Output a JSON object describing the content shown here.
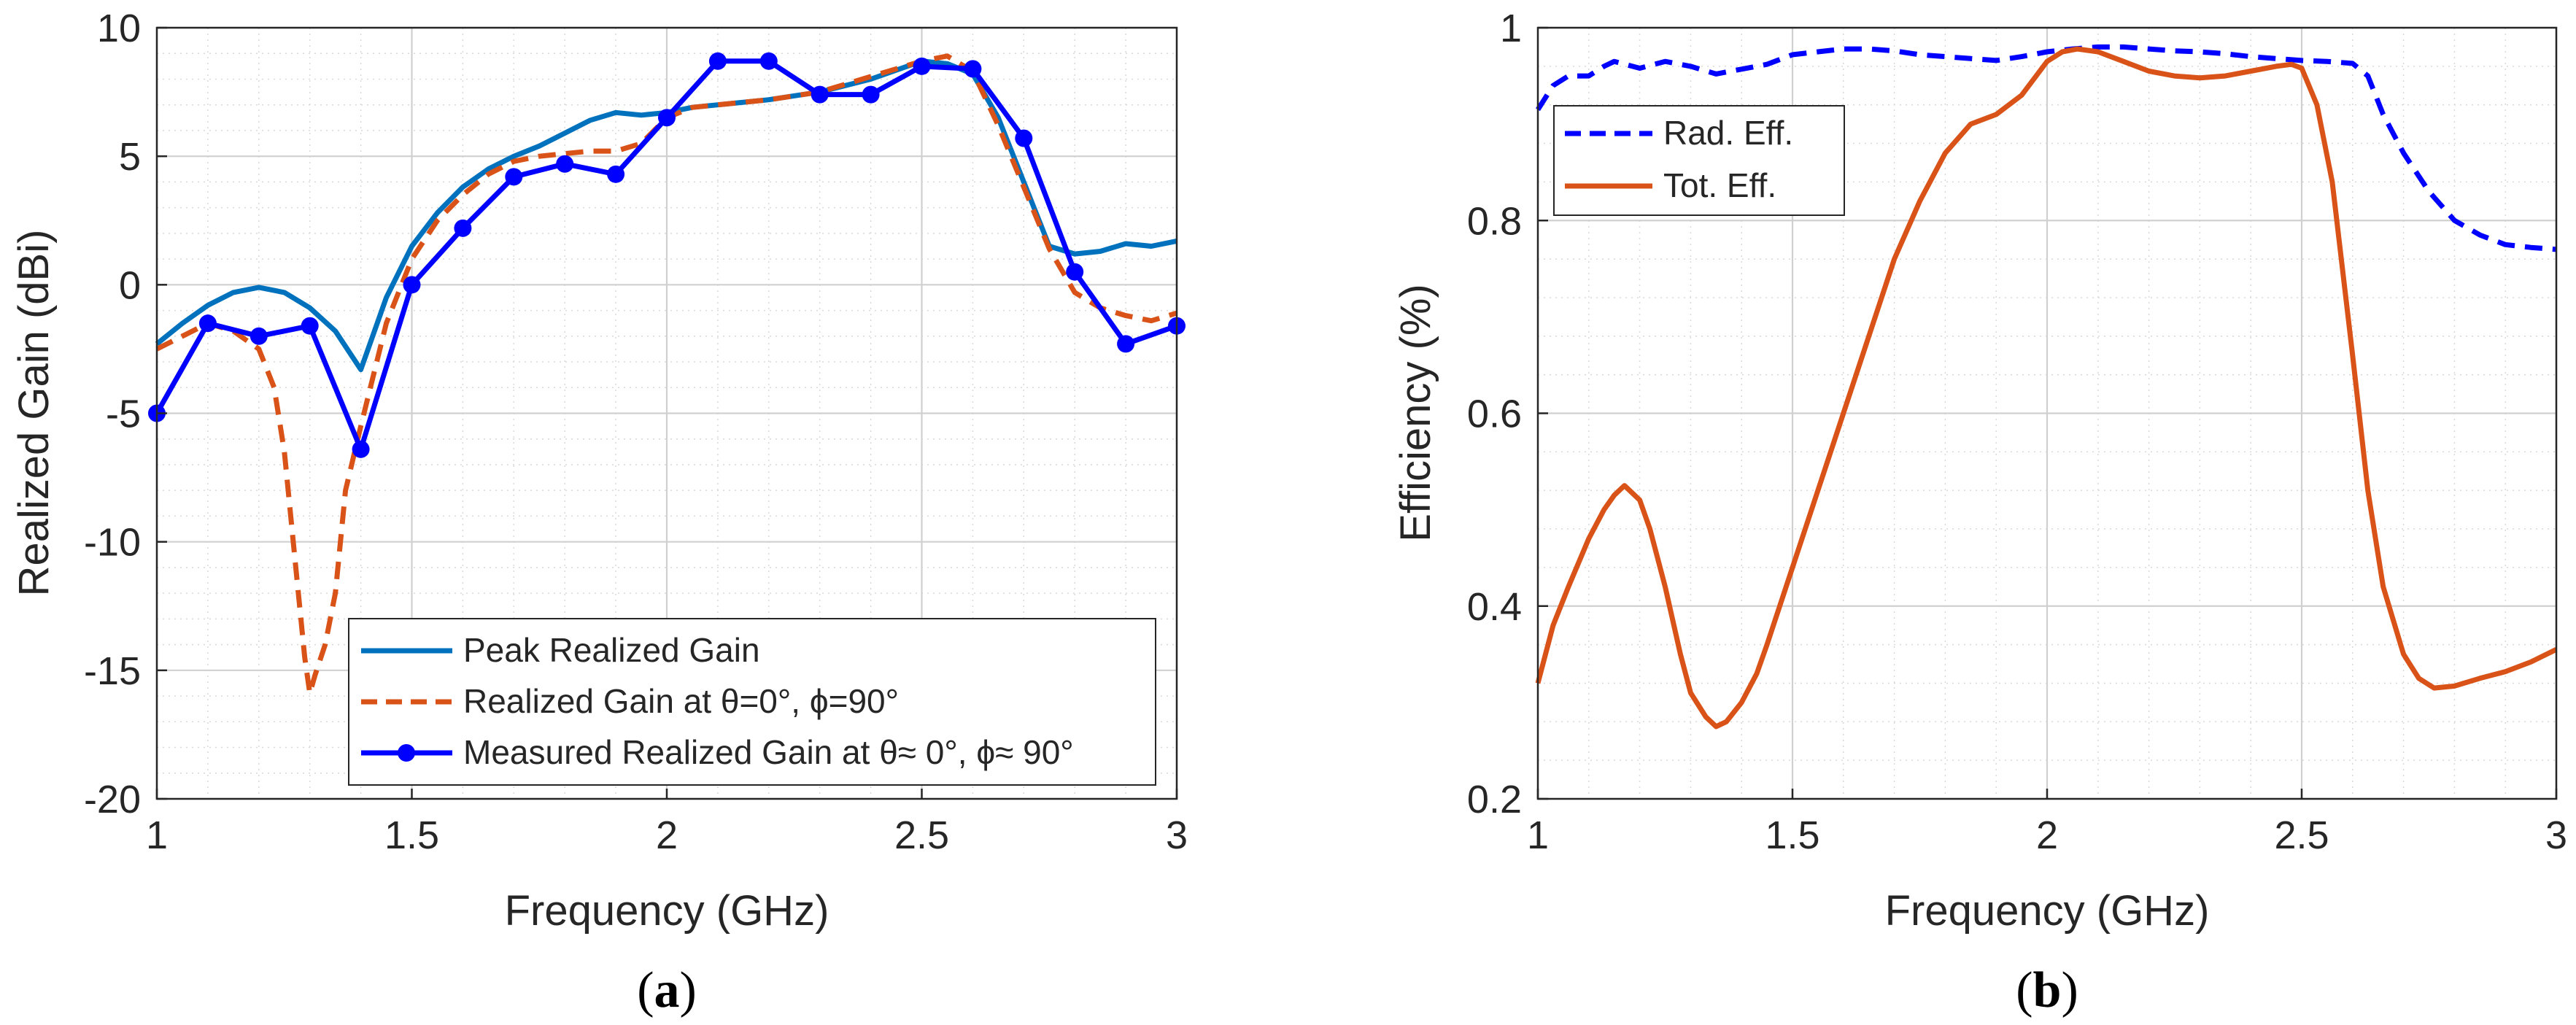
{
  "panels": [
    {
      "label_open": "(",
      "label_letter": "a",
      "label_close": ")",
      "chart_data": {
        "type": "line",
        "title": "",
        "xlabel": "Frequency (GHz)",
        "ylabel": "Realized Gain (dBi)",
        "xlim": [
          1,
          3
        ],
        "ylim": [
          -20,
          10
        ],
        "xticks": [
          1,
          1.5,
          2,
          2.5,
          3
        ],
        "xticklabels": [
          "1",
          "1.5",
          "2",
          "2.5",
          "3"
        ],
        "yticks": [
          -20,
          -15,
          -10,
          -5,
          0,
          5,
          10
        ],
        "yticklabels": [
          "-20",
          "-15",
          "-10",
          "-5",
          "0",
          "5",
          "10"
        ],
        "grid": true,
        "minor_grid": true,
        "legend_position": "bottom-right",
        "series": [
          {
            "name": "Peak Realized Gain",
            "color": "#0072BD",
            "style": "solid",
            "marker": "none",
            "x": [
              1.0,
              1.05,
              1.1,
              1.15,
              1.2,
              1.25,
              1.3,
              1.35,
              1.4,
              1.45,
              1.5,
              1.55,
              1.6,
              1.65,
              1.7,
              1.75,
              1.8,
              1.85,
              1.9,
              1.95,
              2.0,
              2.05,
              2.1,
              2.2,
              2.3,
              2.4,
              2.5,
              2.55,
              2.6,
              2.65,
              2.7,
              2.75,
              2.8,
              2.85,
              2.9,
              2.95,
              3.0
            ],
            "y": [
              -2.3,
              -1.5,
              -0.8,
              -0.3,
              -0.1,
              -0.3,
              -0.9,
              -1.8,
              -3.3,
              -0.5,
              1.5,
              2.8,
              3.8,
              4.5,
              5.0,
              5.4,
              5.9,
              6.4,
              6.7,
              6.6,
              6.7,
              6.9,
              7.0,
              7.2,
              7.5,
              8.0,
              8.7,
              8.6,
              8.2,
              6.5,
              4.0,
              1.5,
              1.2,
              1.3,
              1.6,
              1.5,
              1.7
            ]
          },
          {
            "name": "Realized Gain at θ=0°, ϕ=90°",
            "color": "#D95319",
            "style": "dashed",
            "marker": "none",
            "x": [
              1.0,
              1.05,
              1.1,
              1.15,
              1.2,
              1.23,
              1.25,
              1.27,
              1.29,
              1.3,
              1.31,
              1.33,
              1.35,
              1.37,
              1.4,
              1.45,
              1.5,
              1.55,
              1.6,
              1.65,
              1.7,
              1.75,
              1.8,
              1.85,
              1.9,
              1.95,
              2.0,
              2.05,
              2.1,
              2.2,
              2.3,
              2.4,
              2.5,
              2.55,
              2.6,
              2.65,
              2.7,
              2.75,
              2.8,
              2.85,
              2.9,
              2.95,
              3.0
            ],
            "y": [
              -2.5,
              -2.0,
              -1.5,
              -1.8,
              -2.5,
              -4.0,
              -6.5,
              -10.5,
              -14.5,
              -15.9,
              -15.2,
              -14.0,
              -12.0,
              -8.0,
              -5.5,
              -1.5,
              1.0,
              2.5,
              3.5,
              4.3,
              4.8,
              5.0,
              5.1,
              5.2,
              5.2,
              5.5,
              6.5,
              6.9,
              7.0,
              7.2,
              7.5,
              8.1,
              8.7,
              8.9,
              8.3,
              6.2,
              3.8,
              1.4,
              -0.3,
              -0.9,
              -1.2,
              -1.4,
              -1.1
            ]
          },
          {
            "name": "Measured Realized Gain at θ≈ 0°, ϕ≈ 90°",
            "color": "#0000FF",
            "style": "solid",
            "marker": "circle",
            "x": [
              1.0,
              1.1,
              1.2,
              1.3,
              1.4,
              1.5,
              1.6,
              1.7,
              1.8,
              1.9,
              2.0,
              2.1,
              2.2,
              2.3,
              2.4,
              2.5,
              2.6,
              2.7,
              2.8,
              2.9,
              3.0
            ],
            "y": [
              -5.0,
              -1.5,
              -2.0,
              -1.6,
              -6.4,
              0.0,
              2.2,
              4.2,
              4.7,
              4.3,
              6.5,
              8.7,
              8.7,
              7.4,
              7.4,
              8.5,
              8.4,
              5.7,
              0.5,
              -2.3,
              -1.6
            ]
          }
        ]
      }
    },
    {
      "label_open": "(",
      "label_letter": "b",
      "label_close": ")",
      "chart_data": {
        "type": "line",
        "title": "",
        "xlabel": "Frequency (GHz)",
        "ylabel": "Efficiency (%)",
        "xlim": [
          1,
          3
        ],
        "ylim": [
          0.2,
          1
        ],
        "xticks": [
          1,
          1.5,
          2,
          2.5,
          3
        ],
        "xticklabels": [
          "1",
          "1.5",
          "2",
          "2.5",
          "3"
        ],
        "yticks": [
          0.2,
          0.4,
          0.6,
          0.8,
          1
        ],
        "yticklabels": [
          "0.2",
          "0.4",
          "0.6",
          "0.8",
          "1"
        ],
        "grid": true,
        "minor_grid": true,
        "legend_position": "top-left",
        "series": [
          {
            "name": "Rad. Eff.",
            "color": "#0000FF",
            "style": "dashed",
            "marker": "none",
            "x": [
              1.0,
              1.03,
              1.06,
              1.1,
              1.13,
              1.15,
              1.2,
              1.25,
              1.3,
              1.35,
              1.4,
              1.45,
              1.5,
              1.55,
              1.6,
              1.65,
              1.7,
              1.75,
              1.8,
              1.85,
              1.9,
              1.95,
              2.0,
              2.05,
              2.1,
              2.15,
              2.2,
              2.25,
              2.3,
              2.35,
              2.4,
              2.45,
              2.5,
              2.55,
              2.6,
              2.63,
              2.66,
              2.7,
              2.75,
              2.8,
              2.85,
              2.9,
              2.95,
              3.0
            ],
            "y": [
              0.915,
              0.94,
              0.95,
              0.95,
              0.96,
              0.965,
              0.958,
              0.965,
              0.96,
              0.952,
              0.957,
              0.962,
              0.972,
              0.975,
              0.978,
              0.978,
              0.976,
              0.972,
              0.97,
              0.968,
              0.966,
              0.97,
              0.975,
              0.978,
              0.98,
              0.98,
              0.978,
              0.976,
              0.975,
              0.973,
              0.97,
              0.968,
              0.966,
              0.965,
              0.963,
              0.95,
              0.91,
              0.87,
              0.83,
              0.8,
              0.785,
              0.775,
              0.772,
              0.77
            ]
          },
          {
            "name": "Tot. Eff.",
            "color": "#D95319",
            "style": "solid",
            "marker": "none",
            "x": [
              1.0,
              1.03,
              1.06,
              1.1,
              1.13,
              1.15,
              1.17,
              1.2,
              1.22,
              1.25,
              1.28,
              1.3,
              1.33,
              1.35,
              1.37,
              1.4,
              1.43,
              1.45,
              1.5,
              1.55,
              1.6,
              1.65,
              1.7,
              1.75,
              1.8,
              1.85,
              1.9,
              1.95,
              2.0,
              2.03,
              2.06,
              2.1,
              2.15,
              2.2,
              2.25,
              2.3,
              2.35,
              2.4,
              2.45,
              2.48,
              2.5,
              2.53,
              2.56,
              2.6,
              2.63,
              2.66,
              2.7,
              2.73,
              2.76,
              2.8,
              2.85,
              2.9,
              2.95,
              3.0
            ],
            "y": [
              0.32,
              0.38,
              0.42,
              0.47,
              0.5,
              0.515,
              0.525,
              0.51,
              0.48,
              0.42,
              0.35,
              0.31,
              0.285,
              0.275,
              0.28,
              0.3,
              0.33,
              0.36,
              0.44,
              0.52,
              0.6,
              0.68,
              0.76,
              0.82,
              0.87,
              0.9,
              0.91,
              0.93,
              0.965,
              0.975,
              0.978,
              0.975,
              0.965,
              0.955,
              0.95,
              0.948,
              0.95,
              0.955,
              0.96,
              0.962,
              0.958,
              0.92,
              0.84,
              0.66,
              0.52,
              0.42,
              0.35,
              0.325,
              0.315,
              0.317,
              0.325,
              0.332,
              0.342,
              0.355
            ]
          }
        ]
      }
    }
  ]
}
